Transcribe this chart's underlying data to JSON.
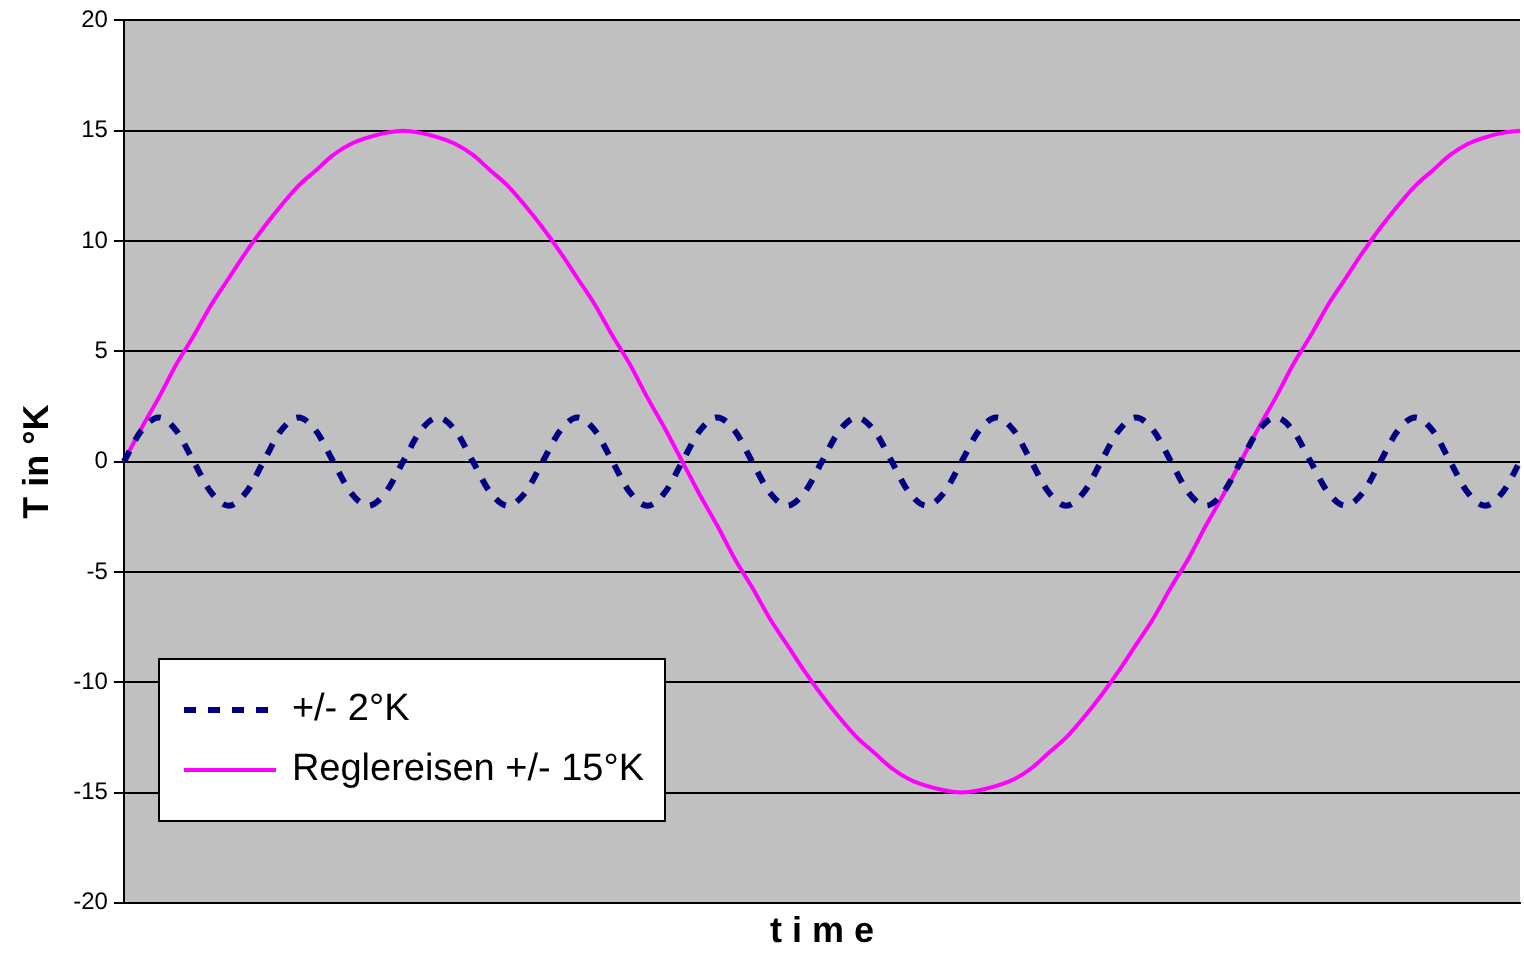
{
  "chart_data": {
    "type": "line",
    "xlabel": "t i m e",
    "ylabel": "T in °K",
    "categories": [
      null,
      null,
      null,
      null,
      null,
      null,
      null,
      null,
      null,
      null,
      null,
      null,
      null,
      null,
      null,
      null,
      null,
      null,
      null,
      null,
      null,
      null,
      null,
      null,
      null,
      null,
      null,
      null,
      null,
      null,
      null,
      null,
      null,
      null,
      null,
      null,
      null,
      null,
      null,
      null,
      null,
      null,
      null,
      null,
      null,
      null,
      null,
      null,
      null,
      null,
      null,
      null,
      null,
      null,
      null,
      null,
      null,
      null,
      null,
      null,
      null,
      null,
      null,
      null,
      null,
      null,
      null,
      null,
      null,
      null,
      null,
      null,
      null,
      null,
      null,
      null,
      null,
      null,
      null,
      null,
      null
    ],
    "series": [
      {
        "name": "+/- 2°K",
        "color": "#000080",
        "line_style": "dashed",
        "values": [
          0,
          1.4,
          2,
          1.4,
          0,
          -1.4,
          -2,
          -1.4,
          0,
          1.4,
          2,
          1.4,
          0,
          -1.4,
          -2,
          -1.4,
          0,
          1.4,
          2,
          1.4,
          0,
          -1.4,
          -2,
          -1.4,
          0,
          1.4,
          2,
          1.4,
          0,
          -1.4,
          -2,
          -1.4,
          0,
          1.4,
          2,
          1.4,
          0,
          -1.4,
          -2,
          -1.4,
          0,
          1.4,
          2,
          1.4,
          0,
          -1.4,
          -2,
          -1.4,
          0,
          1.4,
          2,
          1.4,
          0,
          -1.4,
          -2,
          -1.4,
          0,
          1.4,
          2,
          1.4,
          0,
          -1.4,
          -2,
          -1.4,
          0,
          1.4,
          2,
          1.4,
          0,
          -1.4,
          -2,
          -1.4,
          0,
          1.4,
          2,
          1.4,
          0,
          -1.4,
          -2,
          -1.4,
          0
        ]
      },
      {
        "name": "Reglereisen +/- 15°K",
        "color": "#ff00ff",
        "line_style": "solid",
        "values": [
          0,
          1.5,
          2.9,
          4.4,
          5.7,
          7.1,
          8.3,
          9.5,
          10.6,
          11.6,
          12.5,
          13.2,
          13.9,
          14.4,
          14.7,
          14.9,
          15,
          14.9,
          14.7,
          14.4,
          13.9,
          13.2,
          12.5,
          11.6,
          10.6,
          9.5,
          8.3,
          7.1,
          5.7,
          4.4,
          2.9,
          1.5,
          0,
          -1.5,
          -2.9,
          -4.4,
          -5.7,
          -7.1,
          -8.3,
          -9.5,
          -10.6,
          -11.6,
          -12.5,
          -13.2,
          -13.9,
          -14.4,
          -14.7,
          -14.9,
          -15,
          -14.9,
          -14.7,
          -14.4,
          -13.9,
          -13.2,
          -12.5,
          -11.6,
          -10.6,
          -9.5,
          -8.3,
          -7.1,
          -5.7,
          -4.4,
          -2.9,
          -1.5,
          0,
          1.5,
          2.9,
          4.4,
          5.7,
          7.1,
          8.3,
          9.5,
          10.6,
          11.6,
          12.5,
          13.2,
          13.9,
          14.4,
          14.7,
          14.9,
          15
        ]
      }
    ],
    "ylim": [
      -20,
      20
    ],
    "yticks": [
      -20,
      -15,
      -10,
      -5,
      0,
      5,
      10,
      15,
      20
    ],
    "grid": "y",
    "legend": "bottom left",
    "marker": "none",
    "tick_labels": "y"
  }
}
